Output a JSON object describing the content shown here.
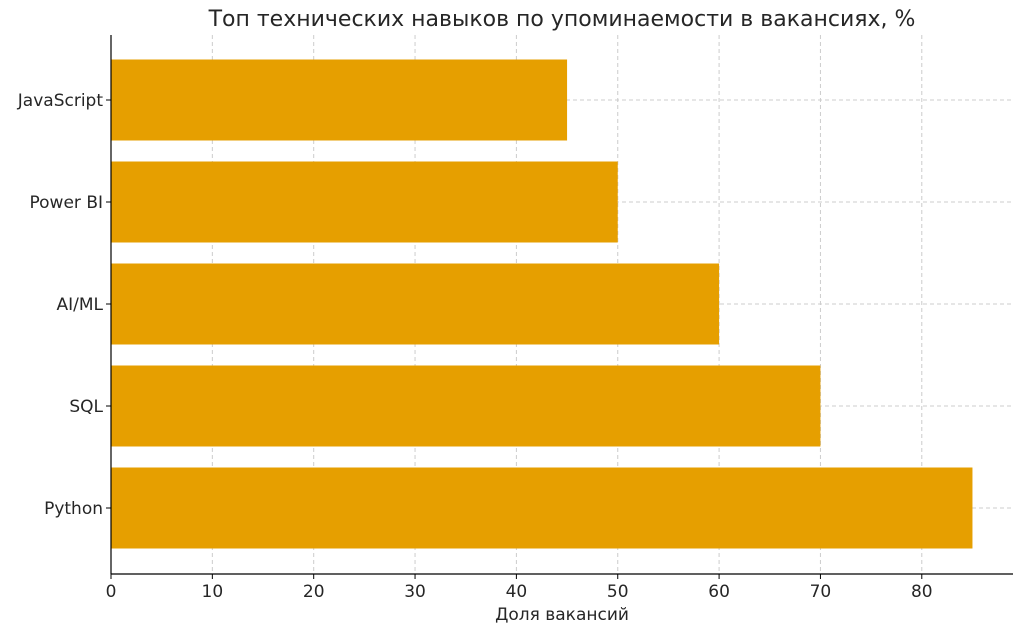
{
  "chart_data": {
    "type": "bar",
    "orientation": "horizontal",
    "title": "Топ технических навыков по упоминаемости в вакансиях, %",
    "xlabel": "Доля вакансий",
    "ylabel": "",
    "categories": [
      "Python",
      "SQL",
      "AI/ML",
      "Power BI",
      "JavaScript"
    ],
    "values": [
      85,
      70,
      60,
      50,
      45
    ],
    "xlim": [
      0,
      89
    ],
    "xticks": [
      0,
      10,
      20,
      30,
      40,
      50,
      60,
      70,
      80
    ],
    "grid": true,
    "bar_color": "#E69F00"
  }
}
